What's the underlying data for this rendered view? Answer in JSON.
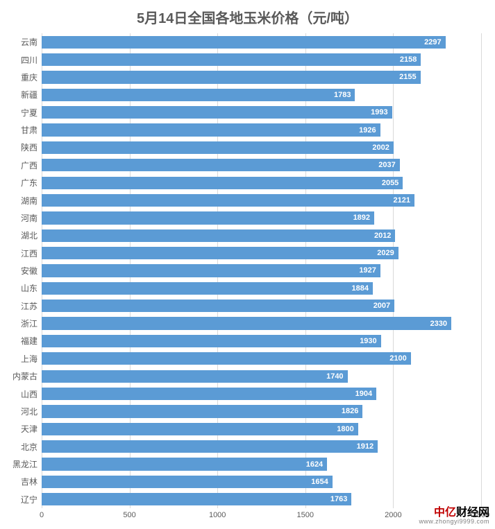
{
  "chart": {
    "type": "bar-horizontal",
    "title": "5月14日全国各地玉米价格（元/吨）",
    "title_fontsize": 20,
    "title_color": "#595959",
    "background_color": "#ffffff",
    "bar_color": "#5b9bd5",
    "bar_border_color": "#5b9bd5",
    "grid_color": "#d9d9d9",
    "value_label_color": "#ffffff",
    "value_label_fontsize": 11,
    "cat_label_color": "#595959",
    "cat_label_fontsize": 12,
    "tick_label_color": "#595959",
    "tick_label_fontsize": 11,
    "xlim": [
      0,
      2500
    ],
    "xtick_step": 500,
    "xticks": [
      0,
      500,
      1000,
      1500,
      2000,
      2500
    ],
    "bar_gap_ratio": 0.28,
    "categories": [
      "云南",
      "四川",
      "重庆",
      "新疆",
      "宁夏",
      "甘肃",
      "陕西",
      "广西",
      "广东",
      "湖南",
      "河南",
      "湖北",
      "江西",
      "安徽",
      "山东",
      "江苏",
      "浙江",
      "福建",
      "上海",
      "内蒙古",
      "山西",
      "河北",
      "天津",
      "北京",
      "黑龙江",
      "吉林",
      "辽宁"
    ],
    "values": [
      2297,
      2158,
      2155,
      1783,
      1993,
      1926,
      2002,
      2037,
      2055,
      2121,
      1892,
      2012,
      2029,
      1927,
      1884,
      2007,
      2330,
      1930,
      2100,
      1740,
      1904,
      1826,
      1800,
      1912,
      1624,
      1654,
      1763
    ]
  },
  "watermark": {
    "brand_red": "中亿",
    "brand_black": "财经网",
    "brand_fontsize": 16,
    "url": "www.zhongyi9999.com"
  }
}
